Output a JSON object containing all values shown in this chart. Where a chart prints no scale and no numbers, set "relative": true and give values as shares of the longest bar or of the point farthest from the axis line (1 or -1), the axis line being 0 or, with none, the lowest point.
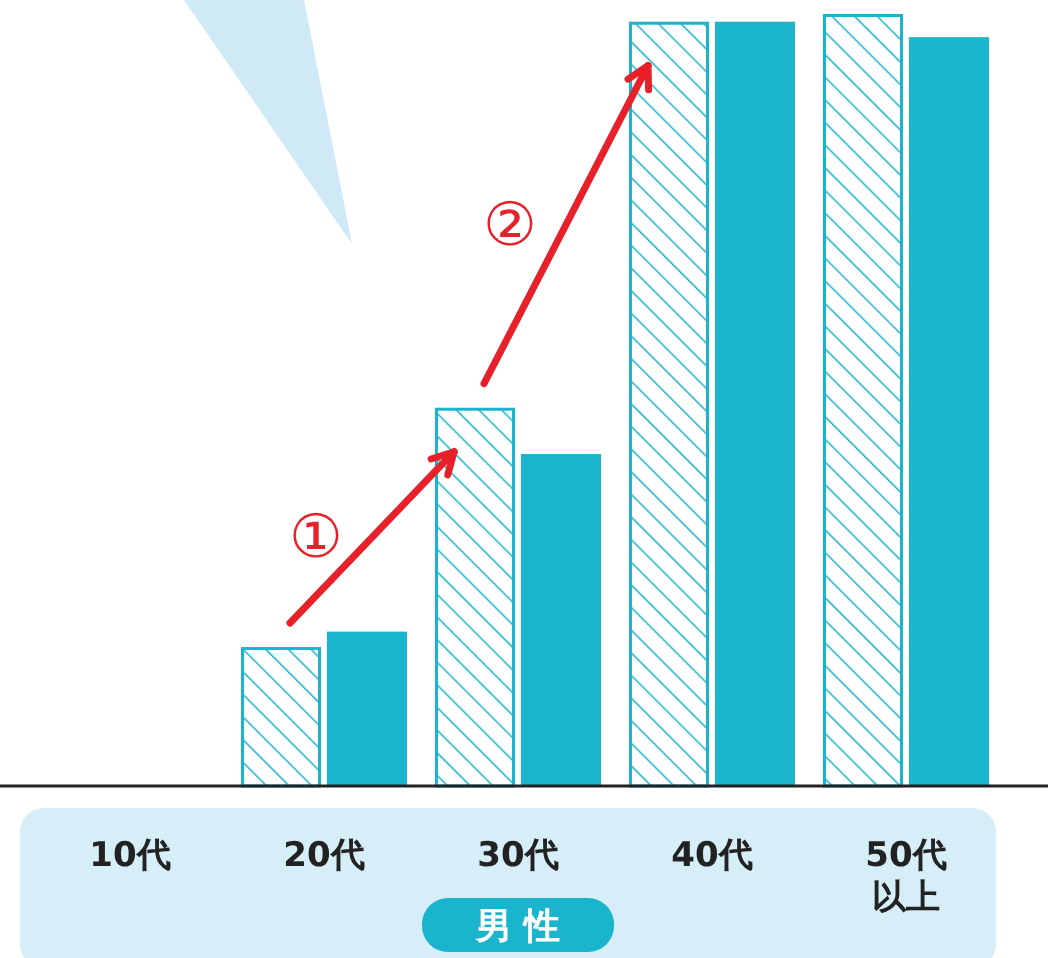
{
  "chart_data": {
    "type": "bar",
    "relative": true,
    "categories": [
      "10代",
      "20代",
      "30代",
      "40代",
      "50代以上"
    ],
    "series": [
      {
        "color": "#1ab4cc",
        "values": [
          null,
          0.18,
          0.49,
          0.99,
          1.0
        ]
      },
      {
        "color": "#1ab4cc",
        "values": [
          null,
          0.2,
          0.43,
          0.99,
          0.97
        ]
      }
    ],
    "annotations": [
      "①",
      "②",
      "男 性"
    ],
    "grid": false
  }
}
